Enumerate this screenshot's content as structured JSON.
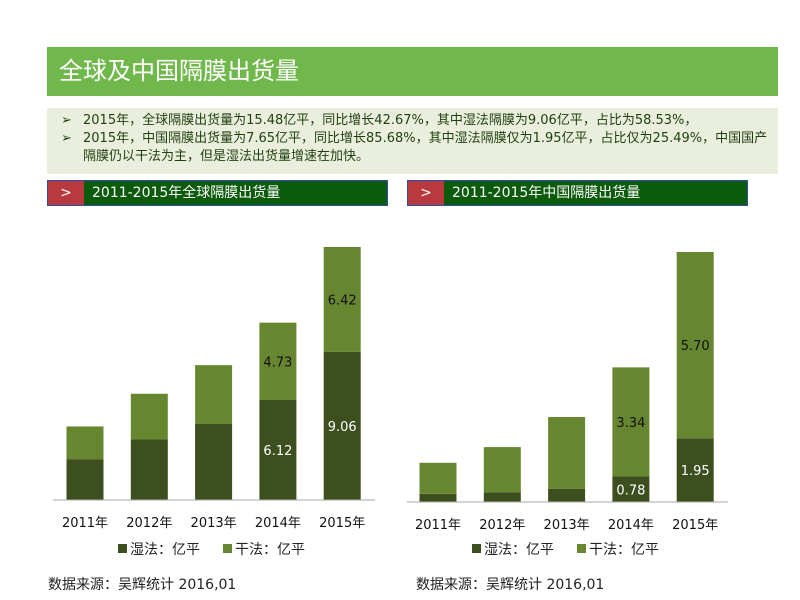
{
  "title": "全球及中国隔膜出货量",
  "bullets": [
    "2015年，全球隔膜出货量为15.48亿平，同比增长42.67%，其中湿法隔膜为9.06亿平，占比为58.53%，",
    "2015年，中国隔膜出货量为7.65亿平，同比增长85.68%，其中湿法隔膜仅为1.95亿平，占比仅为25.49%，中国国产隔膜仍以干法为主，但是湿法出货量增速在加快。"
  ],
  "bullet_marker": "➢",
  "sections": [
    {
      "marker": ">",
      "label": "2011-2015年全球隔膜出货量"
    },
    {
      "marker": ">",
      "label": "2011-2015年中国隔膜出货量"
    }
  ],
  "source": "数据来源：吴辉统计   2016,01",
  "colors": {
    "wet": "#3d4f1f",
    "dry": "#66862f"
  },
  "chart_data": [
    {
      "type": "bar",
      "stacked": true,
      "categories": [
        "2011年",
        "2012年",
        "2013年",
        "2014年",
        "2015年"
      ],
      "series": [
        {
          "name": "湿法：亿平",
          "values": [
            2.5,
            3.7,
            4.65,
            6.12,
            9.06
          ],
          "labels": [
            null,
            null,
            null,
            "6.12",
            "9.06"
          ]
        },
        {
          "name": "干法：亿平",
          "values": [
            2.0,
            2.8,
            3.6,
            4.73,
            6.42
          ],
          "labels": [
            null,
            null,
            null,
            "4.73",
            "6.42"
          ]
        }
      ],
      "legend": "bottom",
      "grid": false,
      "ylim": [
        0,
        15.48
      ]
    },
    {
      "type": "bar",
      "stacked": true,
      "categories": [
        "2011年",
        "2012年",
        "2013年",
        "2014年",
        "2015年"
      ],
      "series": [
        {
          "name": "湿法：亿平",
          "values": [
            0.25,
            0.3,
            0.4,
            0.78,
            1.95
          ],
          "labels": [
            null,
            null,
            null,
            "0.78",
            "1.95"
          ]
        },
        {
          "name": "干法：亿平",
          "values": [
            0.95,
            1.38,
            2.2,
            3.34,
            5.7
          ],
          "labels": [
            null,
            null,
            null,
            "3.34",
            "5.70"
          ]
        }
      ],
      "legend": "bottom",
      "grid": false,
      "ylim": [
        0,
        7.65
      ]
    }
  ]
}
